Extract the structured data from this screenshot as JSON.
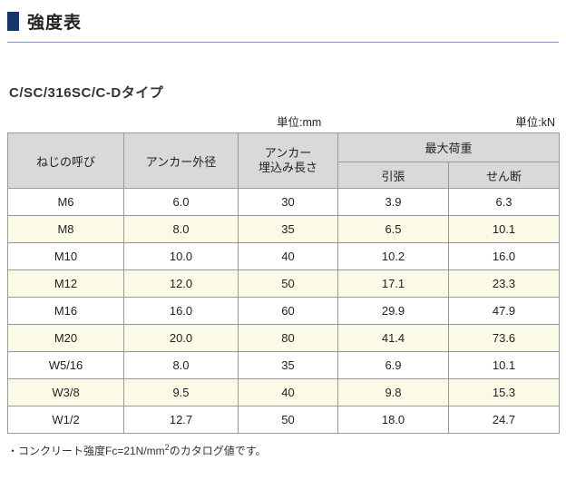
{
  "page": {
    "title": "強度表",
    "subtitle": "C/SC/316SC/C-Dタイプ",
    "unit_mm": "単位:mm",
    "unit_kn": "単位:kN",
    "footnote_pre": "・コンクリート強度Fc=21N/mm",
    "footnote_sup": "2",
    "footnote_post": "のカタログ値です。"
  },
  "colors": {
    "title_marker": "#17356d",
    "header_bg": "#d9d9d9",
    "alt_row_bg": "#fafae6",
    "border": "#999999"
  },
  "table": {
    "headers": {
      "thread": "ねじの呼び",
      "outer_dia": "アンカー外径",
      "embed_line1": "アンカー",
      "embed_line2": "埋込み長さ",
      "max_load": "最大荷重",
      "tension": "引張",
      "shear": "せん断"
    },
    "rows": [
      {
        "name": "M6",
        "od": "6.0",
        "embed": "30",
        "tension": "3.9",
        "shear": "6.3"
      },
      {
        "name": "M8",
        "od": "8.0",
        "embed": "35",
        "tension": "6.5",
        "shear": "10.1"
      },
      {
        "name": "M10",
        "od": "10.0",
        "embed": "40",
        "tension": "10.2",
        "shear": "16.0"
      },
      {
        "name": "M12",
        "od": "12.0",
        "embed": "50",
        "tension": "17.1",
        "shear": "23.3"
      },
      {
        "name": "M16",
        "od": "16.0",
        "embed": "60",
        "tension": "29.9",
        "shear": "47.9"
      },
      {
        "name": "M20",
        "od": "20.0",
        "embed": "80",
        "tension": "41.4",
        "shear": "73.6"
      },
      {
        "name": "W5/16",
        "od": "8.0",
        "embed": "35",
        "tension": "6.9",
        "shear": "10.1"
      },
      {
        "name": "W3/8",
        "od": "9.5",
        "embed": "40",
        "tension": "9.8",
        "shear": "15.3"
      },
      {
        "name": "W1/2",
        "od": "12.7",
        "embed": "50",
        "tension": "18.0",
        "shear": "24.7"
      }
    ]
  }
}
